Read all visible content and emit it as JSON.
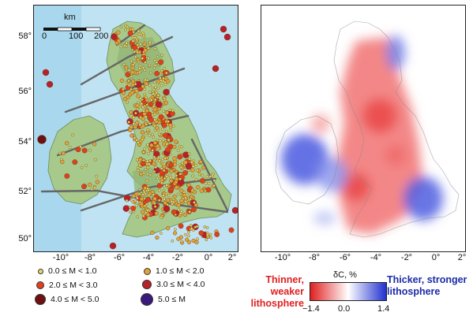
{
  "left_panel": {
    "y_ticks": [
      "58°",
      "56°",
      "54°",
      "52°",
      "50°"
    ],
    "x_ticks": [
      "-10°",
      "-8°",
      "-6°",
      "-4°",
      "-2°",
      "0°",
      "2°"
    ],
    "scale_bar": {
      "unit": "km",
      "labels": [
        "0",
        "100",
        "200"
      ]
    }
  },
  "legend": {
    "items": [
      {
        "label": "0.0 ≤ M < 1.0",
        "color": "#e8d86a"
      },
      {
        "label": "1.0 ≤ M < 2.0",
        "color": "#e3a23c"
      },
      {
        "label": "2.0 ≤ M < 3.0",
        "color": "#e0401e"
      },
      {
        "label": "3.0 ≤ M < 4.0",
        "color": "#b8202a"
      },
      {
        "label": "4.0 ≤ M < 5.0",
        "color": "#6e1010"
      },
      {
        "label": "5.0 ≤ M",
        "color": "#3a1a7a"
      }
    ]
  },
  "right_panel": {
    "x_ticks": [
      "-10°",
      "-8°",
      "-6°",
      "-4°",
      "-2°",
      "0°",
      "2°"
    ]
  },
  "colorbar": {
    "title": "δC, %",
    "ticks": [
      "−1.4",
      "0.0",
      "1.4"
    ],
    "colors": {
      "low": "#e02020",
      "mid": "#ffffff",
      "high": "#2030d0"
    }
  },
  "captions": {
    "left_line1": "Thinner, weaker",
    "left_line2": "lithosphere",
    "right_line1": "Thicker, stronger",
    "right_line2": "lithosphere",
    "left_color": "#e02020",
    "right_color": "#1a2aa8"
  }
}
